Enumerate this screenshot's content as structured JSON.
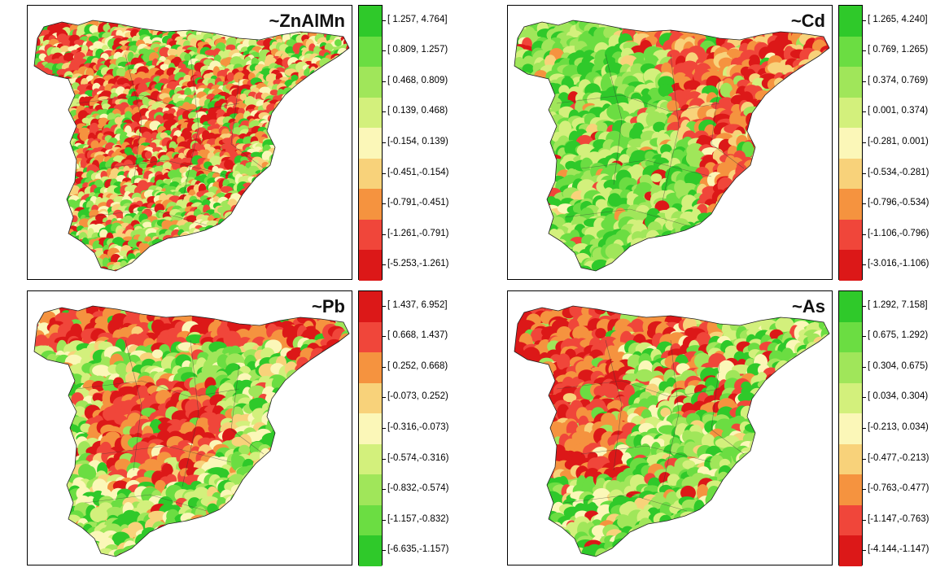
{
  "palettes": {
    "red_low": [
      "#dc1818",
      "#f0463a",
      "#f5933f",
      "#f8d27a",
      "#fbf7b8",
      "#d3f07c",
      "#a0e65a",
      "#6bdd42",
      "#2fc92a"
    ],
    "red_high": [
      "#2fc92a",
      "#6bdd42",
      "#a0e65a",
      "#d3f07c",
      "#fbf7b8",
      "#f8d27a",
      "#f5933f",
      "#f0463a",
      "#dc1818"
    ]
  },
  "panels": [
    {
      "id": "znalmn",
      "title": "~ZnAlMn",
      "palette": "red_low",
      "style": "speckle",
      "legend": [
        "[ 1.257, 4.764]",
        "[ 0.809, 1.257)",
        "[ 0.468, 0.809)",
        "[ 0.139, 0.468)",
        "[-0.154, 0.139)",
        "[-0.451,-0.154)",
        "[-0.791,-0.451)",
        "[-1.261,-0.791)",
        "[-5.253,-1.261)"
      ]
    },
    {
      "id": "cd",
      "title": "~Cd",
      "palette": "red_low",
      "style": "zones-east",
      "legend": [
        "[ 1.265, 4.240]",
        "[ 0.769, 1.265)",
        "[ 0.374, 0.769)",
        "[ 0.001, 0.374)",
        "[-0.281, 0.001)",
        "[-0.534,-0.281)",
        "[-0.796,-0.534)",
        "[-1.106,-0.796)",
        "[-3.016,-1.106)"
      ]
    },
    {
      "id": "pb",
      "title": "~Pb",
      "palette": "red_high",
      "style": "zones-west",
      "legend": [
        "[ 1.437, 6.952]",
        "[ 0.668, 1.437)",
        "[ 0.252, 0.668)",
        "[-0.073, 0.252)",
        "[-0.316,-0.073)",
        "[-0.574,-0.316)",
        "[-0.832,-0.574)",
        "[-1.157,-0.832)",
        "[-6.635,-1.157)"
      ]
    },
    {
      "id": "as",
      "title": "~As",
      "palette": "red_low",
      "style": "zones-nw",
      "legend": [
        "[ 1.292, 7.158]",
        "[ 0.675, 1.292)",
        "[ 0.304, 0.675)",
        "[ 0.034, 0.304)",
        "[-0.213, 0.034)",
        "[-0.477,-0.213)",
        "[-0.763,-0.477)",
        "[-1.147,-0.763)",
        "[-4.144,-1.147)"
      ]
    }
  ]
}
